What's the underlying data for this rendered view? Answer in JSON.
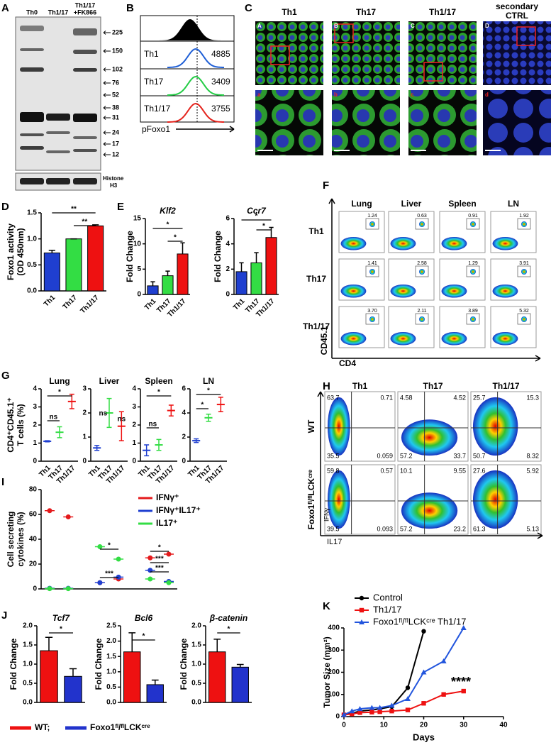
{
  "panel_letters": [
    "A",
    "B",
    "C",
    "D",
    "E",
    "F",
    "G",
    "H",
    "I",
    "J",
    "K"
  ],
  "blot_A": {
    "lanes": [
      [
        "Th0"
      ],
      [
        "Th1/17"
      ],
      [
        "Th1/17",
        "+FK866"
      ]
    ],
    "markers": [
      225,
      150,
      102,
      76,
      52,
      38,
      31,
      24,
      17,
      12
    ],
    "loading": [
      "Histone",
      "H3"
    ]
  },
  "hist_B": {
    "rows": [
      {
        "name": "Th1",
        "value": 4885,
        "color": "#1f5fd6"
      },
      {
        "name": "Th17",
        "value": 3409,
        "color": "#22cc44"
      },
      {
        "name": "Th1/17",
        "value": 3755,
        "color": "#e4231c"
      }
    ],
    "xlabel": "pFoxo1"
  },
  "images_C": {
    "columns": [
      [
        "Th1"
      ],
      [
        "Th17"
      ],
      [
        "Th1/17"
      ],
      [
        "secondary",
        "CTRL"
      ]
    ],
    "upper": [
      "A",
      "B",
      "C",
      "D"
    ],
    "lower": [
      "a",
      "b",
      "c",
      "d"
    ]
  },
  "flow_F": {
    "columns": [
      "Lung",
      "Liver",
      "Spleen",
      "LN"
    ],
    "rows": [
      "Th1",
      "Th17",
      "Th1/17"
    ],
    "values": [
      [
        "1.24",
        "0.63",
        "0.91",
        "1.92"
      ],
      [
        "1.41",
        "2.58",
        "1.29",
        "3.91"
      ],
      [
        "3.70",
        "2.11",
        "3.89",
        "5.32"
      ]
    ],
    "xlabel": "CD4",
    "ylabel": "CD45.1"
  },
  "flow_H": {
    "columns": [
      "Th1",
      "Th17",
      "Th1/17"
    ],
    "rows": [
      "WT",
      "Foxo1ᶠˡ/ᶠˡLCKᶜʳᵉ"
    ],
    "quadrants": [
      [
        [
          "63.7",
          "0.71",
          "35.5",
          "0.059"
        ],
        [
          "4.58",
          "4.52",
          "57.2",
          "33.7"
        ],
        [
          "25.7",
          "15.3",
          "50.7",
          "8.32"
        ]
      ],
      [
        [
          "59.8",
          "0.57",
          "39.5",
          "0.093"
        ],
        [
          "10.1",
          "9.55",
          "57.2",
          "23.2"
        ],
        [
          "27.6",
          "5.92",
          "61.3",
          "5.13"
        ]
      ]
    ],
    "xlabel": "IL17",
    "ylabel": "IFNγ"
  },
  "legend_J": [
    {
      "name": "WT;",
      "color": "#ee1111"
    },
    {
      "name": "Foxo1ᶠˡ/ᶠˡLCKᶜʳᵉ",
      "color": "#2233cc"
    }
  ],
  "chart_data": [
    {
      "type": "bar",
      "ylabel": [
        "Foxo1 activity",
        "(OD 450nm)"
      ],
      "categories": [
        "Th1",
        "Th17",
        "Th1/17"
      ],
      "values": [
        0.73,
        1.0,
        1.25
      ],
      "errors": [
        0.05,
        0,
        0.02
      ],
      "colors": [
        "#1f3fd0",
        "#33dd44",
        "#ee1111"
      ],
      "ylim": [
        0,
        1.5
      ],
      "yticks": [
        {
          "value": 0,
          "label": "0.0"
        },
        {
          "value": 0.5,
          "label": "0.5"
        },
        {
          "value": 1,
          "label": "1.0"
        },
        {
          "value": 1.5,
          "label": "1.5"
        }
      ],
      "annotations": [
        "**",
        "**"
      ]
    },
    {
      "type": "bar",
      "title": "Klf2",
      "ylabel": "Fold Change",
      "categories": [
        "Th1",
        "Th17",
        "Th1/17"
      ],
      "values": [
        1.7,
        3.7,
        8.0
      ],
      "errors": [
        0.8,
        0.9,
        2.2
      ],
      "colors": [
        "#1f3fd0",
        "#33dd44",
        "#ee1111"
      ],
      "ylim": [
        0,
        15
      ],
      "yticks": [
        0,
        5,
        10,
        15
      ],
      "annotations": [
        "*",
        "*"
      ]
    },
    {
      "type": "bar",
      "title": "Ccr7",
      "ylabel": "Fold Change",
      "categories": [
        "Th1",
        "Th17",
        "Th1/17"
      ],
      "values": [
        1.8,
        2.5,
        4.5
      ],
      "errors": [
        0.7,
        0.8,
        0.8
      ],
      "colors": [
        "#1f3fd0",
        "#33dd44",
        "#ee1111"
      ],
      "ylim": [
        0,
        6
      ],
      "yticks": [
        0,
        2,
        4,
        6
      ],
      "annotations": [
        "*",
        "*"
      ]
    },
    {
      "type": "errorbar",
      "title": "Lung",
      "ylabel": [
        "CD4⁺CD45.1⁺",
        "T cells (%)"
      ],
      "categories": [
        "Th1",
        "Th17",
        "Th1/17"
      ],
      "values": [
        1.1,
        1.6,
        3.3
      ],
      "errors": [
        0.03,
        0.3,
        0.4
      ],
      "colors": [
        "#1f3fd0",
        "#33dd44",
        "#ee1111"
      ],
      "ylim": [
        0,
        4
      ],
      "yticks": [
        0,
        1,
        2,
        3,
        4
      ],
      "annotations": [
        "*",
        "ns"
      ]
    },
    {
      "type": "errorbar",
      "title": "Liver",
      "categories": [
        "Th1",
        "Th17",
        "Th1/17"
      ],
      "values": [
        0.55,
        2.0,
        1.45
      ],
      "errors": [
        0.1,
        0.6,
        0.6
      ],
      "colors": [
        "#1f3fd0",
        "#33dd44",
        "#ee1111"
      ],
      "ylim": [
        0,
        3
      ],
      "yticks": [
        0,
        1,
        2,
        3
      ],
      "annotations": [
        "ns",
        "ns"
      ]
    },
    {
      "type": "errorbar",
      "title": "Spleen",
      "categories": [
        "Th1",
        "Th17",
        "Th1/17"
      ],
      "values": [
        0.6,
        0.9,
        2.8
      ],
      "errors": [
        0.3,
        0.3,
        0.3
      ],
      "colors": [
        "#1f3fd0",
        "#33dd44",
        "#ee1111"
      ],
      "ylim": [
        0,
        4
      ],
      "yticks": [
        0,
        1,
        2,
        3,
        4
      ],
      "annotations": [
        "*",
        "ns"
      ]
    },
    {
      "type": "errorbar",
      "title": "LN",
      "categories": [
        "Th1",
        "Th17",
        "Th1/17"
      ],
      "values": [
        1.7,
        3.6,
        4.7
      ],
      "errors": [
        0.15,
        0.3,
        0.6
      ],
      "colors": [
        "#1f3fd0",
        "#33dd44",
        "#ee1111"
      ],
      "ylim": [
        0,
        6
      ],
      "yticks": [
        0,
        2,
        4,
        6
      ],
      "annotations": [
        "*",
        "*"
      ]
    },
    {
      "type": "scatter",
      "ylabel": [
        "Cell secreting",
        "cytokines (%)"
      ],
      "series": [
        {
          "name": "IFNγ⁺",
          "color": "#e41a1c",
          "values": [
            63,
            58,
            5,
            8,
            25,
            28
          ]
        },
        {
          "name": "IFNγ⁺IL17⁺",
          "color": "#1f3fd0",
          "values": [
            0.5,
            0.5,
            5,
            9.5,
            15,
            6
          ]
        },
        {
          "name": "IL17⁺",
          "color": "#33dd44",
          "values": [
            0.2,
            0.2,
            34,
            24,
            8,
            5
          ]
        }
      ],
      "ylim": [
        0,
        80
      ],
      "yticks": [
        0,
        20,
        40,
        60,
        80
      ],
      "annotations": [
        "*",
        "***",
        "*",
        "***",
        "***"
      ]
    },
    {
      "type": "bar",
      "title": "Tcf7",
      "ylabel": "Fold Change",
      "values": [
        1.35,
        0.68
      ],
      "errors": [
        0.35,
        0.2
      ],
      "ylim": [
        0,
        2
      ],
      "yticks": [
        {
          "value": 0,
          "label": "0.0"
        },
        {
          "value": 0.5,
          "label": "0.5"
        },
        {
          "value": 1,
          "label": "1.0"
        },
        {
          "value": 1.5,
          "label": "1.5"
        },
        {
          "value": 2,
          "label": "2.0"
        }
      ],
      "annotations": [
        "*"
      ]
    },
    {
      "type": "bar",
      "title": "Bcl6",
      "ylabel": "Fold Change",
      "values": [
        1.65,
        0.58
      ],
      "errors": [
        0.62,
        0.15
      ],
      "ylim": [
        0,
        2.5
      ],
      "yticks": [
        {
          "value": 0,
          "label": "0.0"
        },
        {
          "value": 0.5,
          "label": "0.5"
        },
        {
          "value": 1,
          "label": "1.0"
        },
        {
          "value": 1.5,
          "label": "1.5"
        },
        {
          "value": 2,
          "label": "2.0"
        },
        {
          "value": 2.5,
          "label": "2.5"
        }
      ],
      "annotations": [
        "*"
      ]
    },
    {
      "type": "bar",
      "title": "β-catenin",
      "ylabel": "Fold Change",
      "values": [
        1.32,
        0.92
      ],
      "errors": [
        0.33,
        0.07
      ],
      "ylim": [
        0,
        2
      ],
      "yticks": [
        {
          "value": 0,
          "label": "0.0"
        },
        {
          "value": 0.5,
          "label": "0.5"
        },
        {
          "value": 1,
          "label": "1.0"
        },
        {
          "value": 1.5,
          "label": "1.5"
        },
        {
          "value": 2,
          "label": "2.0"
        }
      ],
      "annotations": [
        "*"
      ]
    },
    {
      "type": "line",
      "xlabel": "Days",
      "ylabel": "Tumor Size (mm²)",
      "x": [
        0,
        2,
        4,
        7,
        9,
        12,
        16,
        20,
        25,
        30
      ],
      "series": [
        {
          "name": "Control",
          "color": "#000000",
          "marker": "circle",
          "values": [
            8,
            15,
            25,
            30,
            35,
            45,
            130,
            385,
            null,
            null
          ]
        },
        {
          "name": "Th1/17",
          "color": "#ee1111",
          "marker": "square",
          "values": [
            8,
            12,
            18,
            20,
            22,
            25,
            30,
            60,
            100,
            115
          ]
        },
        {
          "name": "Foxo1ᶠˡ/ᶠˡLCKᶜʳᵉ Th1/17",
          "color": "#2255dd",
          "marker": "triangle",
          "values": [
            8,
            25,
            35,
            40,
            40,
            50,
            80,
            200,
            250,
            400
          ]
        }
      ],
      "xlim": [
        0,
        40
      ],
      "xticks": [
        0,
        10,
        20,
        30,
        40
      ],
      "ylim": [
        0,
        400
      ],
      "yticks": [
        0,
        100,
        200,
        300,
        400
      ],
      "annotations": [
        "****"
      ]
    }
  ]
}
